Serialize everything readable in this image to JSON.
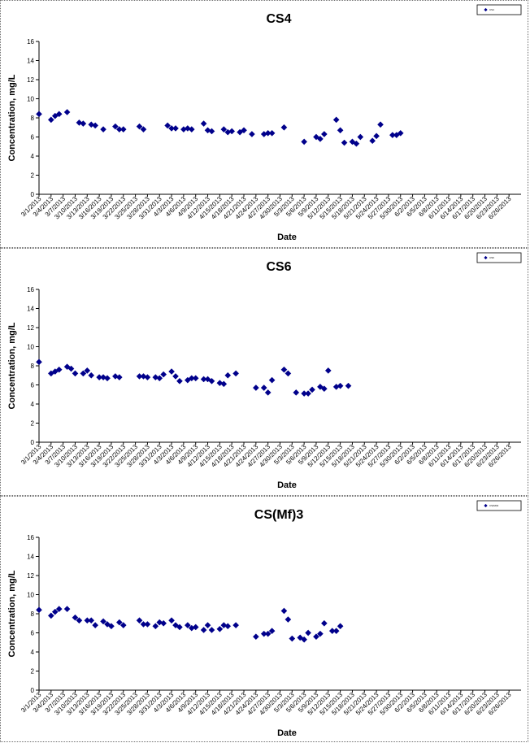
{
  "chart_data": [
    {
      "type": "scatter",
      "title": "CS4",
      "xlabel": "Date",
      "ylabel": "Concentration, mg/L",
      "ylim": [
        0,
        16
      ],
      "yticks": [
        "0",
        "2",
        "4",
        "6",
        "8",
        "10",
        "12",
        "14",
        "16"
      ],
      "grid": false,
      "legend_position": "top-right",
      "marker_color": "#00008B",
      "xtick_labels": [
        "3/1/2013",
        "3/4/2013",
        "3/7/2013",
        "3/10/2013",
        "3/13/2013",
        "3/16/2013",
        "3/19/2013",
        "3/22/2013",
        "3/25/2013",
        "3/28/2013",
        "3/31/2013",
        "4/3/2013",
        "4/6/2013",
        "4/9/2013",
        "4/12/2013",
        "4/15/2013",
        "4/18/2013",
        "4/21/2013",
        "4/24/2013",
        "4/27/2013",
        "4/30/2013",
        "5/3/2013",
        "5/6/2013",
        "5/9/2013",
        "5/12/2013",
        "5/15/2013",
        "5/18/2013",
        "5/21/2013",
        "5/24/2013",
        "5/27/2013",
        "5/30/2013",
        "6/2/2013",
        "6/5/2013",
        "6/8/2013",
        "6/11/2013",
        "6/14/2013",
        "6/17/2013",
        "6/20/2013",
        "6/23/2013",
        "6/26/2013"
      ],
      "series": [
        {
          "name": "CS4",
          "points": [
            [
              "3/1/2013",
              8.4
            ],
            [
              "3/4/2013",
              7.8
            ],
            [
              "3/5/2013",
              8.2
            ],
            [
              "3/6/2013",
              8.4
            ],
            [
              "3/8/2013",
              8.6
            ],
            [
              "3/11/2013",
              7.5
            ],
            [
              "3/12/2013",
              7.4
            ],
            [
              "3/14/2013",
              7.3
            ],
            [
              "3/15/2013",
              7.2
            ],
            [
              "3/17/2013",
              6.8
            ],
            [
              "3/20/2013",
              7.1
            ],
            [
              "3/21/2013",
              6.8
            ],
            [
              "3/22/2013",
              6.8
            ],
            [
              "3/26/2013",
              7.1
            ],
            [
              "3/27/2013",
              6.8
            ],
            [
              "4/2/2013",
              7.2
            ],
            [
              "4/3/2013",
              6.9
            ],
            [
              "4/4/2013",
              6.9
            ],
            [
              "4/6/2013",
              6.8
            ],
            [
              "4/7/2013",
              6.9
            ],
            [
              "4/8/2013",
              6.8
            ],
            [
              "4/11/2013",
              7.4
            ],
            [
              "4/12/2013",
              6.7
            ],
            [
              "4/13/2013",
              6.6
            ],
            [
              "4/16/2013",
              6.8
            ],
            [
              "4/17/2013",
              6.5
            ],
            [
              "4/18/2013",
              6.6
            ],
            [
              "4/20/2013",
              6.5
            ],
            [
              "4/21/2013",
              6.7
            ],
            [
              "4/23/2013",
              6.3
            ],
            [
              "4/26/2013",
              6.3
            ],
            [
              "4/27/2013",
              6.4
            ],
            [
              "4/28/2013",
              6.4
            ],
            [
              "5/1/2013",
              7.0
            ],
            [
              "5/6/2013",
              5.5
            ],
            [
              "5/9/2013",
              6.0
            ],
            [
              "5/10/2013",
              5.8
            ],
            [
              "5/11/2013",
              6.3
            ],
            [
              "5/14/2013",
              7.8
            ],
            [
              "5/15/2013",
              6.7
            ],
            [
              "5/16/2013",
              5.4
            ],
            [
              "5/18/2013",
              5.5
            ],
            [
              "5/19/2013",
              5.3
            ],
            [
              "5/20/2013",
              6.0
            ],
            [
              "5/23/2013",
              5.6
            ],
            [
              "5/24/2013",
              6.1
            ],
            [
              "5/25/2013",
              7.3
            ],
            [
              "5/28/2013",
              6.2
            ],
            [
              "5/29/2013",
              6.2
            ],
            [
              "5/30/2013",
              6.4
            ]
          ]
        }
      ]
    },
    {
      "type": "scatter",
      "title": "CS6",
      "xlabel": "Date",
      "ylabel": "Concentration, mg/L",
      "ylim": [
        0,
        16
      ],
      "yticks": [
        "0",
        "2",
        "4",
        "6",
        "8",
        "10",
        "12",
        "14",
        "16"
      ],
      "grid": false,
      "legend_position": "top-right",
      "marker_color": "#00008B",
      "xtick_labels": [
        "3/1/2013",
        "3/4/2013",
        "3/7/2013",
        "3/10/2013",
        "3/13/2013",
        "3/16/2013",
        "3/19/2013",
        "3/22/2013",
        "3/25/2013",
        "3/28/2013",
        "3/31/2013",
        "4/3/2013",
        "4/6/2013",
        "4/9/2013",
        "4/12/2013",
        "4/15/2013",
        "4/18/2013",
        "4/21/2013",
        "4/24/2013",
        "4/27/2013",
        "4/30/2013",
        "5/3/2013",
        "5/6/2013",
        "5/9/2013",
        "5/12/2013",
        "5/15/2013",
        "5/18/2013",
        "5/21/2013",
        "5/24/2013",
        "5/27/2013",
        "5/30/2013",
        "6/2/2013",
        "6/5/2013",
        "6/8/2013",
        "6/11/2013",
        "6/14/2013",
        "6/17/2013",
        "6/20/2013",
        "6/23/2013",
        "6/26/2013"
      ],
      "series": [
        {
          "name": "CS6",
          "points": [
            [
              "3/1/2013",
              8.4
            ],
            [
              "3/4/2013",
              7.2
            ],
            [
              "3/5/2013",
              7.4
            ],
            [
              "3/6/2013",
              7.6
            ],
            [
              "3/8/2013",
              7.9
            ],
            [
              "3/9/2013",
              7.7
            ],
            [
              "3/10/2013",
              7.2
            ],
            [
              "3/12/2013",
              7.2
            ],
            [
              "3/13/2013",
              7.5
            ],
            [
              "3/14/2013",
              7.0
            ],
            [
              "3/16/2013",
              6.8
            ],
            [
              "3/17/2013",
              6.8
            ],
            [
              "3/18/2013",
              6.7
            ],
            [
              "3/20/2013",
              6.9
            ],
            [
              "3/21/2013",
              6.8
            ],
            [
              "3/26/2013",
              6.9
            ],
            [
              "3/27/2013",
              6.9
            ],
            [
              "3/28/2013",
              6.8
            ],
            [
              "3/30/2013",
              6.8
            ],
            [
              "3/31/2013",
              6.7
            ],
            [
              "4/1/2013",
              7.1
            ],
            [
              "4/3/2013",
              7.4
            ],
            [
              "4/4/2013",
              6.9
            ],
            [
              "4/5/2013",
              6.4
            ],
            [
              "4/7/2013",
              6.5
            ],
            [
              "4/8/2013",
              6.7
            ],
            [
              "4/9/2013",
              6.7
            ],
            [
              "4/11/2013",
              6.6
            ],
            [
              "4/12/2013",
              6.6
            ],
            [
              "4/13/2013",
              6.4
            ],
            [
              "4/15/2013",
              6.2
            ],
            [
              "4/16/2013",
              6.1
            ],
            [
              "4/17/2013",
              7.0
            ],
            [
              "4/19/2013",
              7.2
            ],
            [
              "4/24/2013",
              5.7
            ],
            [
              "4/26/2013",
              5.7
            ],
            [
              "4/27/2013",
              5.2
            ],
            [
              "4/28/2013",
              6.5
            ],
            [
              "5/1/2013",
              7.6
            ],
            [
              "5/2/2013",
              7.2
            ],
            [
              "5/4/2013",
              5.2
            ],
            [
              "5/6/2013",
              5.1
            ],
            [
              "5/7/2013",
              5.1
            ],
            [
              "5/8/2013",
              5.5
            ],
            [
              "5/10/2013",
              5.8
            ],
            [
              "5/11/2013",
              5.6
            ],
            [
              "5/12/2013",
              7.5
            ],
            [
              "5/14/2013",
              5.8
            ],
            [
              "5/15/2013",
              5.9
            ],
            [
              "5/17/2013",
              5.9
            ]
          ]
        }
      ]
    },
    {
      "type": "scatter",
      "title": "CS(Mf)3",
      "xlabel": "Date",
      "ylabel": "Concentration, mg/L",
      "ylim": [
        0,
        16
      ],
      "yticks": [
        "0",
        "2",
        "4",
        "6",
        "8",
        "10",
        "12",
        "14",
        "16"
      ],
      "grid": false,
      "legend_position": "top-right",
      "marker_color": "#00008B",
      "xtick_labels": [
        "3/1/2013",
        "3/4/2013",
        "3/7/2013",
        "3/10/2013",
        "3/13/2013",
        "3/16/2013",
        "3/19/2013",
        "3/22/2013",
        "3/25/2013",
        "3/28/2013",
        "3/31/2013",
        "4/3/2013",
        "4/6/2013",
        "4/9/2013",
        "4/12/2013",
        "4/15/2013",
        "4/18/2013",
        "4/21/2013",
        "4/24/2013",
        "4/27/2013",
        "4/30/2013",
        "5/3/2013",
        "5/6/2013",
        "5/9/2013",
        "5/12/2013",
        "5/15/2013",
        "5/18/2013",
        "5/21/2013",
        "5/24/2013",
        "5/27/2013",
        "5/30/2013",
        "6/2/2013",
        "6/5/2013",
        "6/8/2013",
        "6/11/2013",
        "6/14/2013",
        "6/17/2013",
        "6/20/2013",
        "6/23/2013",
        "6/26/2013"
      ],
      "series": [
        {
          "name": "CS(Mf)3",
          "points": [
            [
              "3/1/2013",
              8.4
            ],
            [
              "3/4/2013",
              7.8
            ],
            [
              "3/5/2013",
              8.2
            ],
            [
              "3/6/2013",
              8.5
            ],
            [
              "3/8/2013",
              8.5
            ],
            [
              "3/10/2013",
              7.6
            ],
            [
              "3/11/2013",
              7.3
            ],
            [
              "3/13/2013",
              7.3
            ],
            [
              "3/14/2013",
              7.3
            ],
            [
              "3/15/2013",
              6.8
            ],
            [
              "3/17/2013",
              7.2
            ],
            [
              "3/18/2013",
              6.9
            ],
            [
              "3/19/2013",
              6.7
            ],
            [
              "3/21/2013",
              7.1
            ],
            [
              "3/22/2013",
              6.8
            ],
            [
              "3/26/2013",
              7.3
            ],
            [
              "3/27/2013",
              6.9
            ],
            [
              "3/28/2013",
              6.9
            ],
            [
              "3/30/2013",
              6.7
            ],
            [
              "3/31/2013",
              7.1
            ],
            [
              "4/1/2013",
              7.0
            ],
            [
              "4/3/2013",
              7.3
            ],
            [
              "4/4/2013",
              6.8
            ],
            [
              "4/5/2013",
              6.6
            ],
            [
              "4/7/2013",
              6.8
            ],
            [
              "4/8/2013",
              6.5
            ],
            [
              "4/9/2013",
              6.6
            ],
            [
              "4/11/2013",
              6.3
            ],
            [
              "4/12/2013",
              6.8
            ],
            [
              "4/13/2013",
              6.3
            ],
            [
              "4/15/2013",
              6.4
            ],
            [
              "4/16/2013",
              6.8
            ],
            [
              "4/17/2013",
              6.7
            ],
            [
              "4/19/2013",
              6.8
            ],
            [
              "4/24/2013",
              5.6
            ],
            [
              "4/26/2013",
              5.9
            ],
            [
              "4/27/2013",
              5.9
            ],
            [
              "4/28/2013",
              6.2
            ],
            [
              "5/1/2013",
              8.3
            ],
            [
              "5/2/2013",
              7.4
            ],
            [
              "5/3/2013",
              5.4
            ],
            [
              "5/5/2013",
              5.5
            ],
            [
              "5/6/2013",
              5.3
            ],
            [
              "5/7/2013",
              6.0
            ],
            [
              "5/9/2013",
              5.6
            ],
            [
              "5/10/2013",
              5.9
            ],
            [
              "5/11/2013",
              7.0
            ],
            [
              "5/13/2013",
              6.2
            ],
            [
              "5/14/2013",
              6.2
            ],
            [
              "5/15/2013",
              6.7
            ]
          ]
        }
      ]
    }
  ]
}
